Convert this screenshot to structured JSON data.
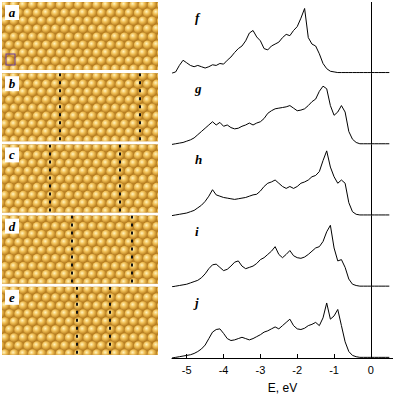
{
  "structure_panels": [
    "a",
    "b",
    "c",
    "d",
    "e"
  ],
  "chart_data": [
    {
      "type": "line",
      "title": "f",
      "color": "#000000",
      "tick_labels": false,
      "xlim": [
        -5.4,
        0.6
      ],
      "ylim": [
        0,
        1.1
      ],
      "vline": 0,
      "x": [
        -5.4,
        -5.3,
        -5.2,
        -5.1,
        -5.0,
        -4.9,
        -4.8,
        -4.7,
        -4.6,
        -4.5,
        -4.4,
        -4.3,
        -4.2,
        -4.1,
        -4.0,
        -3.9,
        -3.8,
        -3.7,
        -3.6,
        -3.5,
        -3.4,
        -3.3,
        -3.2,
        -3.1,
        -3.0,
        -2.9,
        -2.8,
        -2.7,
        -2.6,
        -2.5,
        -2.4,
        -2.3,
        -2.2,
        -2.1,
        -2.0,
        -1.9,
        -1.8,
        -1.7,
        -1.6,
        -1.5,
        -1.4,
        -1.3,
        -1.2,
        -1.1,
        -1.0,
        -0.9,
        -0.8,
        -0.7,
        -0.6,
        -0.5,
        -0.4,
        -0.3,
        -0.2,
        -0.1,
        0.0,
        0.1,
        0.2,
        0.3,
        0.4,
        0.5
      ],
      "values": [
        0.0,
        0.02,
        0.12,
        0.2,
        0.16,
        0.12,
        0.1,
        0.12,
        0.1,
        0.08,
        0.1,
        0.13,
        0.12,
        0.15,
        0.14,
        0.2,
        0.25,
        0.32,
        0.38,
        0.42,
        0.5,
        0.62,
        0.66,
        0.56,
        0.5,
        0.38,
        0.36,
        0.42,
        0.45,
        0.48,
        0.55,
        0.6,
        0.58,
        0.66,
        0.72,
        0.85,
        1.0,
        0.55,
        0.45,
        0.42,
        0.3,
        0.15,
        0.07,
        0.03,
        0.02,
        0.01,
        0.01,
        0.01,
        0.01,
        0.01,
        0.01,
        0.01,
        0.01,
        0.01,
        0.01,
        0.01,
        0.01,
        0.01,
        0.01,
        0.01
      ]
    },
    {
      "type": "line",
      "title": "g",
      "color": "#000000",
      "tick_labels": false,
      "xlim": [
        -5.4,
        0.6
      ],
      "ylim": [
        0,
        1.1
      ],
      "vline": 0,
      "x": [
        -5.4,
        -5.3,
        -5.2,
        -5.1,
        -5.0,
        -4.9,
        -4.8,
        -4.7,
        -4.6,
        -4.5,
        -4.4,
        -4.3,
        -4.2,
        -4.1,
        -4.0,
        -3.9,
        -3.8,
        -3.7,
        -3.6,
        -3.5,
        -3.4,
        -3.3,
        -3.2,
        -3.1,
        -3.0,
        -2.9,
        -2.8,
        -2.7,
        -2.6,
        -2.5,
        -2.4,
        -2.3,
        -2.2,
        -2.1,
        -2.0,
        -1.9,
        -1.8,
        -1.7,
        -1.6,
        -1.5,
        -1.4,
        -1.3,
        -1.2,
        -1.1,
        -1.0,
        -0.9,
        -0.8,
        -0.7,
        -0.6,
        -0.5,
        -0.4,
        -0.3,
        -0.2,
        -0.1,
        0.0,
        0.1,
        0.2,
        0.3,
        0.4,
        0.5
      ],
      "values": [
        0.0,
        0.01,
        0.02,
        0.03,
        0.05,
        0.07,
        0.1,
        0.15,
        0.2,
        0.25,
        0.3,
        0.35,
        0.3,
        0.34,
        0.28,
        0.3,
        0.26,
        0.24,
        0.25,
        0.28,
        0.3,
        0.33,
        0.3,
        0.33,
        0.35,
        0.4,
        0.48,
        0.52,
        0.55,
        0.56,
        0.57,
        0.58,
        0.6,
        0.56,
        0.52,
        0.53,
        0.55,
        0.6,
        0.66,
        0.7,
        0.82,
        0.9,
        0.86,
        0.6,
        0.45,
        0.5,
        0.6,
        0.5,
        0.2,
        0.08,
        0.03,
        0.01,
        0.01,
        0.01,
        0.01,
        0.01,
        0.01,
        0.01,
        0.01,
        0.01
      ]
    },
    {
      "type": "line",
      "title": "h",
      "color": "#000000",
      "tick_labels": false,
      "xlim": [
        -5.4,
        0.6
      ],
      "ylim": [
        0,
        1.1
      ],
      "vline": 0,
      "x": [
        -5.4,
        -5.3,
        -5.2,
        -5.1,
        -5.0,
        -4.9,
        -4.8,
        -4.7,
        -4.6,
        -4.5,
        -4.4,
        -4.3,
        -4.2,
        -4.1,
        -4.0,
        -3.9,
        -3.8,
        -3.7,
        -3.6,
        -3.5,
        -3.4,
        -3.3,
        -3.2,
        -3.1,
        -3.0,
        -2.9,
        -2.8,
        -2.7,
        -2.6,
        -2.5,
        -2.4,
        -2.3,
        -2.2,
        -2.1,
        -2.0,
        -1.9,
        -1.8,
        -1.7,
        -1.6,
        -1.5,
        -1.4,
        -1.3,
        -1.2,
        -1.1,
        -1.0,
        -0.9,
        -0.8,
        -0.7,
        -0.6,
        -0.5,
        -0.4,
        -0.3,
        -0.2,
        -0.1,
        0.0,
        0.1,
        0.2,
        0.3,
        0.4,
        0.5
      ],
      "values": [
        0.0,
        0.01,
        0.02,
        0.03,
        0.04,
        0.06,
        0.08,
        0.12,
        0.16,
        0.22,
        0.3,
        0.4,
        0.32,
        0.3,
        0.28,
        0.27,
        0.26,
        0.25,
        0.26,
        0.27,
        0.28,
        0.3,
        0.32,
        0.33,
        0.38,
        0.45,
        0.5,
        0.52,
        0.55,
        0.5,
        0.45,
        0.42,
        0.45,
        0.42,
        0.45,
        0.5,
        0.52,
        0.55,
        0.6,
        0.62,
        0.68,
        0.85,
        1.0,
        0.75,
        0.6,
        0.5,
        0.55,
        0.5,
        0.2,
        0.06,
        0.02,
        0.01,
        0.01,
        0.01,
        0.01,
        0.01,
        0.01,
        0.01,
        0.01,
        0.01
      ]
    },
    {
      "type": "line",
      "title": "i",
      "color": "#000000",
      "tick_labels": false,
      "xlim": [
        -5.4,
        0.6
      ],
      "ylim": [
        0,
        1.1
      ],
      "vline": 0,
      "x": [
        -5.4,
        -5.3,
        -5.2,
        -5.1,
        -5.0,
        -4.9,
        -4.8,
        -4.7,
        -4.6,
        -4.5,
        -4.4,
        -4.3,
        -4.2,
        -4.1,
        -4.0,
        -3.9,
        -3.8,
        -3.7,
        -3.6,
        -3.5,
        -3.4,
        -3.3,
        -3.2,
        -3.1,
        -3.0,
        -2.9,
        -2.8,
        -2.7,
        -2.6,
        -2.5,
        -2.4,
        -2.3,
        -2.2,
        -2.1,
        -2.0,
        -1.9,
        -1.8,
        -1.7,
        -1.6,
        -1.5,
        -1.4,
        -1.3,
        -1.2,
        -1.1,
        -1.0,
        -0.9,
        -0.8,
        -0.7,
        -0.6,
        -0.5,
        -0.4,
        -0.3,
        -0.2,
        -0.1,
        0.0,
        0.1,
        0.2,
        0.3,
        0.4,
        0.5
      ],
      "values": [
        0.0,
        0.01,
        0.02,
        0.03,
        0.04,
        0.06,
        0.08,
        0.1,
        0.14,
        0.2,
        0.28,
        0.34,
        0.35,
        0.3,
        0.25,
        0.27,
        0.32,
        0.38,
        0.4,
        0.32,
        0.28,
        0.3,
        0.32,
        0.36,
        0.42,
        0.45,
        0.5,
        0.55,
        0.62,
        0.5,
        0.45,
        0.5,
        0.56,
        0.48,
        0.45,
        0.44,
        0.46,
        0.5,
        0.55,
        0.6,
        0.62,
        0.7,
        0.85,
        0.95,
        0.6,
        0.4,
        0.42,
        0.3,
        0.12,
        0.04,
        0.02,
        0.01,
        0.01,
        0.01,
        0.01,
        0.01,
        0.01,
        0.01,
        0.01,
        0.01
      ]
    },
    {
      "type": "line",
      "title": "j",
      "color": "#000000",
      "tick_labels": "x",
      "xlim": [
        -5.4,
        0.6
      ],
      "ylim": [
        0,
        1.1
      ],
      "vline": 0,
      "xticks": [
        -5,
        -4,
        -3,
        -2,
        -1,
        0
      ],
      "x_label": "E, eV",
      "x": [
        -5.4,
        -5.3,
        -5.2,
        -5.1,
        -5.0,
        -4.9,
        -4.8,
        -4.7,
        -4.6,
        -4.5,
        -4.4,
        -4.3,
        -4.2,
        -4.1,
        -4.0,
        -3.9,
        -3.8,
        -3.7,
        -3.6,
        -3.5,
        -3.4,
        -3.3,
        -3.2,
        -3.1,
        -3.0,
        -2.9,
        -2.8,
        -2.7,
        -2.6,
        -2.5,
        -2.4,
        -2.3,
        -2.2,
        -2.1,
        -2.0,
        -1.9,
        -1.8,
        -1.7,
        -1.6,
        -1.5,
        -1.4,
        -1.3,
        -1.2,
        -1.1,
        -1.0,
        -0.9,
        -0.8,
        -0.7,
        -0.6,
        -0.5,
        -0.4,
        -0.3,
        -0.2,
        -0.1,
        0.0,
        0.1,
        0.2,
        0.3,
        0.4,
        0.5
      ],
      "values": [
        0.0,
        0.01,
        0.02,
        0.03,
        0.04,
        0.05,
        0.07,
        0.1,
        0.14,
        0.2,
        0.3,
        0.4,
        0.44,
        0.45,
        0.38,
        0.3,
        0.27,
        0.28,
        0.3,
        0.32,
        0.3,
        0.28,
        0.3,
        0.33,
        0.36,
        0.4,
        0.42,
        0.45,
        0.48,
        0.45,
        0.5,
        0.55,
        0.6,
        0.5,
        0.45,
        0.44,
        0.46,
        0.5,
        0.52,
        0.55,
        0.5,
        0.62,
        0.85,
        0.6,
        0.65,
        0.75,
        0.5,
        0.25,
        0.1,
        0.04,
        0.02,
        0.01,
        0.01,
        0.01,
        0.01,
        0.01,
        0.01,
        0.01,
        0.01,
        0.01
      ]
    }
  ]
}
